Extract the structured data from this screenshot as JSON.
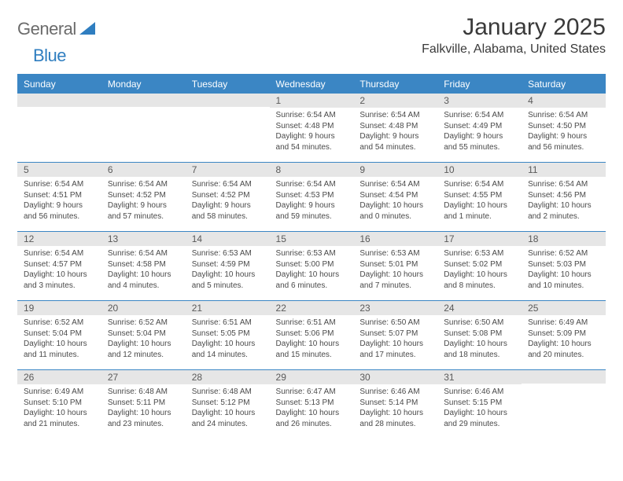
{
  "logo": {
    "text1": "General",
    "text2": "Blue"
  },
  "title": "January 2025",
  "location": "Falkville, Alabama, United States",
  "colors": {
    "header_bg": "#3b86c4",
    "header_text": "#ffffff",
    "daynum_bg": "#e6e6e6",
    "border": "#3b86c4",
    "logo_gray": "#6b6b6b",
    "logo_blue": "#2f7ec0"
  },
  "weekdays": [
    "Sunday",
    "Monday",
    "Tuesday",
    "Wednesday",
    "Thursday",
    "Friday",
    "Saturday"
  ],
  "weeks": [
    [
      null,
      null,
      null,
      {
        "num": "1",
        "sunrise": "Sunrise: 6:54 AM",
        "sunset": "Sunset: 4:48 PM",
        "daylight1": "Daylight: 9 hours",
        "daylight2": "and 54 minutes."
      },
      {
        "num": "2",
        "sunrise": "Sunrise: 6:54 AM",
        "sunset": "Sunset: 4:48 PM",
        "daylight1": "Daylight: 9 hours",
        "daylight2": "and 54 minutes."
      },
      {
        "num": "3",
        "sunrise": "Sunrise: 6:54 AM",
        "sunset": "Sunset: 4:49 PM",
        "daylight1": "Daylight: 9 hours",
        "daylight2": "and 55 minutes."
      },
      {
        "num": "4",
        "sunrise": "Sunrise: 6:54 AM",
        "sunset": "Sunset: 4:50 PM",
        "daylight1": "Daylight: 9 hours",
        "daylight2": "and 56 minutes."
      }
    ],
    [
      {
        "num": "5",
        "sunrise": "Sunrise: 6:54 AM",
        "sunset": "Sunset: 4:51 PM",
        "daylight1": "Daylight: 9 hours",
        "daylight2": "and 56 minutes."
      },
      {
        "num": "6",
        "sunrise": "Sunrise: 6:54 AM",
        "sunset": "Sunset: 4:52 PM",
        "daylight1": "Daylight: 9 hours",
        "daylight2": "and 57 minutes."
      },
      {
        "num": "7",
        "sunrise": "Sunrise: 6:54 AM",
        "sunset": "Sunset: 4:52 PM",
        "daylight1": "Daylight: 9 hours",
        "daylight2": "and 58 minutes."
      },
      {
        "num": "8",
        "sunrise": "Sunrise: 6:54 AM",
        "sunset": "Sunset: 4:53 PM",
        "daylight1": "Daylight: 9 hours",
        "daylight2": "and 59 minutes."
      },
      {
        "num": "9",
        "sunrise": "Sunrise: 6:54 AM",
        "sunset": "Sunset: 4:54 PM",
        "daylight1": "Daylight: 10 hours",
        "daylight2": "and 0 minutes."
      },
      {
        "num": "10",
        "sunrise": "Sunrise: 6:54 AM",
        "sunset": "Sunset: 4:55 PM",
        "daylight1": "Daylight: 10 hours",
        "daylight2": "and 1 minute."
      },
      {
        "num": "11",
        "sunrise": "Sunrise: 6:54 AM",
        "sunset": "Sunset: 4:56 PM",
        "daylight1": "Daylight: 10 hours",
        "daylight2": "and 2 minutes."
      }
    ],
    [
      {
        "num": "12",
        "sunrise": "Sunrise: 6:54 AM",
        "sunset": "Sunset: 4:57 PM",
        "daylight1": "Daylight: 10 hours",
        "daylight2": "and 3 minutes."
      },
      {
        "num": "13",
        "sunrise": "Sunrise: 6:54 AM",
        "sunset": "Sunset: 4:58 PM",
        "daylight1": "Daylight: 10 hours",
        "daylight2": "and 4 minutes."
      },
      {
        "num": "14",
        "sunrise": "Sunrise: 6:53 AM",
        "sunset": "Sunset: 4:59 PM",
        "daylight1": "Daylight: 10 hours",
        "daylight2": "and 5 minutes."
      },
      {
        "num": "15",
        "sunrise": "Sunrise: 6:53 AM",
        "sunset": "Sunset: 5:00 PM",
        "daylight1": "Daylight: 10 hours",
        "daylight2": "and 6 minutes."
      },
      {
        "num": "16",
        "sunrise": "Sunrise: 6:53 AM",
        "sunset": "Sunset: 5:01 PM",
        "daylight1": "Daylight: 10 hours",
        "daylight2": "and 7 minutes."
      },
      {
        "num": "17",
        "sunrise": "Sunrise: 6:53 AM",
        "sunset": "Sunset: 5:02 PM",
        "daylight1": "Daylight: 10 hours",
        "daylight2": "and 8 minutes."
      },
      {
        "num": "18",
        "sunrise": "Sunrise: 6:52 AM",
        "sunset": "Sunset: 5:03 PM",
        "daylight1": "Daylight: 10 hours",
        "daylight2": "and 10 minutes."
      }
    ],
    [
      {
        "num": "19",
        "sunrise": "Sunrise: 6:52 AM",
        "sunset": "Sunset: 5:04 PM",
        "daylight1": "Daylight: 10 hours",
        "daylight2": "and 11 minutes."
      },
      {
        "num": "20",
        "sunrise": "Sunrise: 6:52 AM",
        "sunset": "Sunset: 5:04 PM",
        "daylight1": "Daylight: 10 hours",
        "daylight2": "and 12 minutes."
      },
      {
        "num": "21",
        "sunrise": "Sunrise: 6:51 AM",
        "sunset": "Sunset: 5:05 PM",
        "daylight1": "Daylight: 10 hours",
        "daylight2": "and 14 minutes."
      },
      {
        "num": "22",
        "sunrise": "Sunrise: 6:51 AM",
        "sunset": "Sunset: 5:06 PM",
        "daylight1": "Daylight: 10 hours",
        "daylight2": "and 15 minutes."
      },
      {
        "num": "23",
        "sunrise": "Sunrise: 6:50 AM",
        "sunset": "Sunset: 5:07 PM",
        "daylight1": "Daylight: 10 hours",
        "daylight2": "and 17 minutes."
      },
      {
        "num": "24",
        "sunrise": "Sunrise: 6:50 AM",
        "sunset": "Sunset: 5:08 PM",
        "daylight1": "Daylight: 10 hours",
        "daylight2": "and 18 minutes."
      },
      {
        "num": "25",
        "sunrise": "Sunrise: 6:49 AM",
        "sunset": "Sunset: 5:09 PM",
        "daylight1": "Daylight: 10 hours",
        "daylight2": "and 20 minutes."
      }
    ],
    [
      {
        "num": "26",
        "sunrise": "Sunrise: 6:49 AM",
        "sunset": "Sunset: 5:10 PM",
        "daylight1": "Daylight: 10 hours",
        "daylight2": "and 21 minutes."
      },
      {
        "num": "27",
        "sunrise": "Sunrise: 6:48 AM",
        "sunset": "Sunset: 5:11 PM",
        "daylight1": "Daylight: 10 hours",
        "daylight2": "and 23 minutes."
      },
      {
        "num": "28",
        "sunrise": "Sunrise: 6:48 AM",
        "sunset": "Sunset: 5:12 PM",
        "daylight1": "Daylight: 10 hours",
        "daylight2": "and 24 minutes."
      },
      {
        "num": "29",
        "sunrise": "Sunrise: 6:47 AM",
        "sunset": "Sunset: 5:13 PM",
        "daylight1": "Daylight: 10 hours",
        "daylight2": "and 26 minutes."
      },
      {
        "num": "30",
        "sunrise": "Sunrise: 6:46 AM",
        "sunset": "Sunset: 5:14 PM",
        "daylight1": "Daylight: 10 hours",
        "daylight2": "and 28 minutes."
      },
      {
        "num": "31",
        "sunrise": "Sunrise: 6:46 AM",
        "sunset": "Sunset: 5:15 PM",
        "daylight1": "Daylight: 10 hours",
        "daylight2": "and 29 minutes."
      },
      null
    ]
  ]
}
